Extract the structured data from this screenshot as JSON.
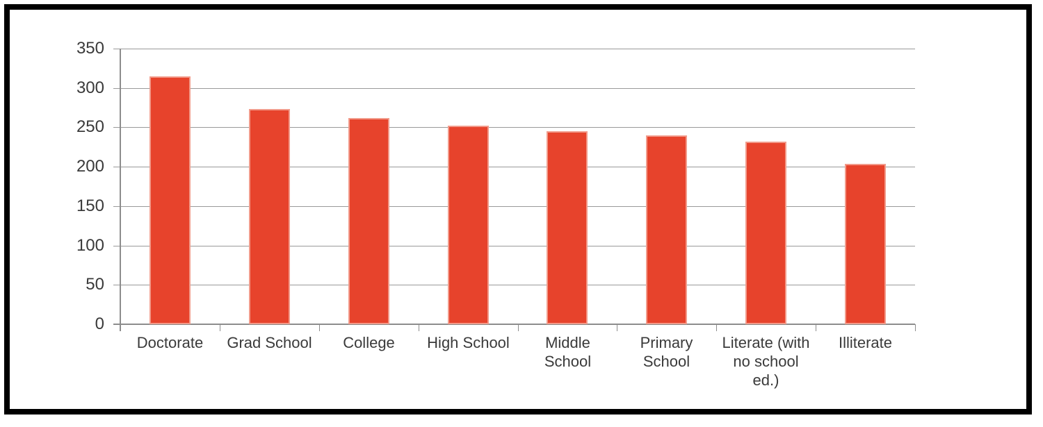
{
  "chart_data": {
    "type": "bar",
    "title": "",
    "xlabel": "",
    "ylabel": "",
    "categories": [
      "Doctorate",
      "Grad School",
      "College",
      "High School",
      "Middle School",
      "Primary School",
      "Literate (with no school ed.)",
      "Illiterate"
    ],
    "tick_labels": [
      "Doctorate",
      "Grad School",
      "College",
      "High School",
      "Middle\nSchool",
      "Primary\nSchool",
      "Literate (with\nno school\ned.)",
      "Illiterate"
    ],
    "values": [
      315,
      273,
      262,
      252,
      245,
      240,
      232,
      204
    ],
    "ylim": [
      0,
      350
    ],
    "yticks": [
      0,
      50,
      100,
      150,
      200,
      250,
      300,
      350
    ],
    "grid": true,
    "legend": false,
    "bar_color": "#E7432C",
    "bar_edge_color": "#F29B8B",
    "gridline_color": "#999999",
    "axis_color": "#8C8C8C",
    "text_color": "#3A3A3A",
    "frame_color": "#000000",
    "background_color": "#FFFFFF"
  }
}
